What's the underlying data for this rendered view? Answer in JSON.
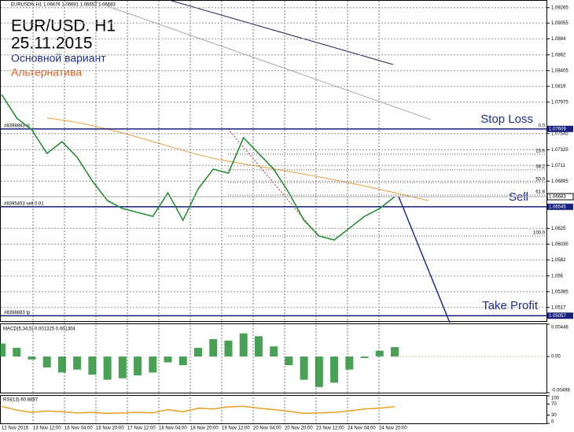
{
  "chart_data": {
    "type": "line",
    "header": "EURUSDfx,H1  1.06676 1.06691 1.06652 1.06683",
    "title": "EUR/USD. H1",
    "date": "25.11.2015",
    "legend": [
      {
        "name": "Основной вариант",
        "color": "#1f2f8f"
      },
      {
        "name": "Альтернатива",
        "color": "#e8601c"
      }
    ],
    "color": "#1a8a2a",
    "values": [
      1.0808,
      1.07758,
      1.07596,
      1.07274,
      1.07435,
      1.0722,
      1.06898,
      1.06629,
      1.06521,
      1.06468,
      1.06414,
      1.06736,
      1.0636,
      1.0679,
      1.07059,
      1.07005,
      1.07489,
      1.07274,
      1.07059,
      1.06736,
      1.0636,
      1.06145,
      1.06091,
      1.06253,
      1.06414,
      1.06521,
      1.06683
    ],
    "ylim": [
      1.04984,
      1.0937
    ],
    "yticks": [
      1.09265,
      1.09055,
      1.0884,
      1.0862,
      1.08405,
      1.0819,
      1.07975,
      1.07545,
      1.07325,
      1.0711,
      1.06895,
      1.0625,
      1.06035,
      1.0582,
      1.056,
      1.05385,
      1.0517
    ],
    "x_labels": [
      "12 Nov 2015",
      "13 Nov 12:00",
      "16 Nov 04:00",
      "16 Nov 20:00",
      "17 Nov 12:00",
      "18 Nov 04:00",
      "18 Nov 20:00",
      "19 Nov 12:00",
      "20 Nov 04:00",
      "20 Nov 20:00",
      "23 Nov 12:00",
      "24 Nov 04:00",
      "24 Nov 20:00"
    ],
    "current_price": 1.06683,
    "levels": [
      {
        "label": "Stop Loss",
        "value": 1.07609,
        "order": "#8398883 sl"
      },
      {
        "label": "Sell",
        "value": 1.06545,
        "order": "#8395453 sell 0.01"
      },
      {
        "label": "Take Profit",
        "value": 1.05057,
        "order": "#8398883 tp"
      }
    ],
    "fib": [
      {
        "label": "0.0",
        "value": 1.07609
      },
      {
        "label": "23.6",
        "value": 1.07264
      },
      {
        "label": "38.2",
        "value": 1.0705
      },
      {
        "label": "50.0",
        "value": 1.06877
      },
      {
        "label": "61.8",
        "value": 1.06704
      },
      {
        "label": "100.0",
        "value": 1.06145
      }
    ],
    "macd": {
      "label": "MACD(5,34,5) 0.001325 0.001304",
      "color": "#1a8a2a",
      "values": [
        0.0018,
        0.0012,
        -0.0004,
        -0.0015,
        -0.0022,
        -0.0018,
        -0.0025,
        -0.0032,
        -0.003,
        -0.0026,
        -0.0022,
        -0.0008,
        -0.0012,
        0.0012,
        0.0024,
        0.0022,
        0.0032,
        0.0028,
        0.0014,
        -0.0012,
        -0.0032,
        -0.0042,
        -0.0036,
        -0.0018,
        -0.0002,
        0.0008,
        0.0013
      ],
      "ylim": [
        -0.00498,
        0.00446
      ],
      "yticks": [
        0.00446,
        {
          "value": 0,
          "label": "0.00"
        },
        -0.00498
      ]
    },
    "rsi": {
      "label": "RSI(13) 60.8897",
      "color": "#e8a020",
      "values": [
        62,
        48,
        40,
        45,
        42,
        38,
        40,
        36,
        38,
        40,
        38,
        50,
        42,
        55,
        52,
        60,
        62,
        55,
        50,
        44,
        36,
        38,
        40,
        45,
        52,
        55,
        60.8897
      ],
      "ylim": [
        0,
        100
      ],
      "yticks": [
        100,
        70,
        30,
        0
      ]
    }
  }
}
